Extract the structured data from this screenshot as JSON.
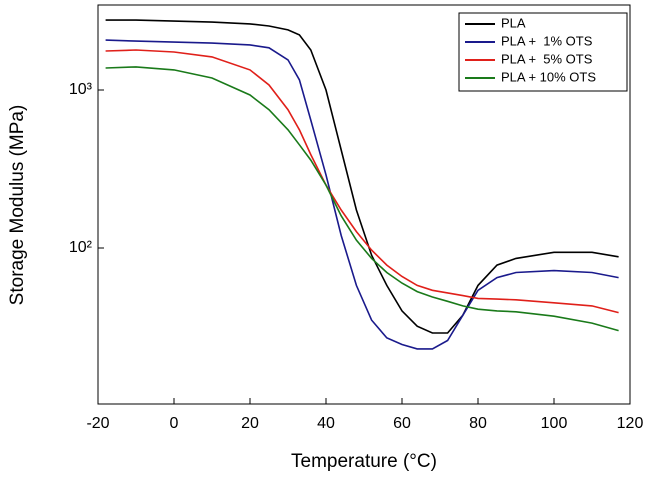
{
  "chart_data": {
    "type": "line",
    "x_label": "Temperature (°C)",
    "y_label": "Storage Modulus (MPa)",
    "x": [
      -18,
      -10,
      0,
      10,
      20,
      25,
      30,
      33,
      36,
      40,
      44,
      48,
      52,
      56,
      60,
      64,
      68,
      72,
      76,
      80,
      85,
      90,
      100,
      110,
      117
    ],
    "series": [
      {
        "name": "PLA",
        "color": "#000000",
        "values": [
          2770,
          2770,
          2730,
          2690,
          2620,
          2540,
          2400,
          2230,
          1790,
          1000,
          417,
          174,
          90,
          58,
          40,
          32,
          29,
          29,
          37.5,
          58,
          78,
          86,
          94,
          94,
          88
        ]
      },
      {
        "name": "PLA +  1% OTS",
        "color": "#1a1a8c",
        "values": [
          2070,
          2040,
          2010,
          1980,
          1930,
          1850,
          1550,
          1160,
          645,
          290,
          120,
          58,
          35,
          27,
          24.5,
          23,
          23,
          26,
          37.5,
          54,
          65,
          70,
          72,
          70,
          65
        ]
      },
      {
        "name": "PLA +  5% OTS",
        "color": "#e0201a",
        "values": [
          1765,
          1790,
          1740,
          1620,
          1340,
          1075,
          750,
          560,
          390,
          250,
          174,
          127,
          97,
          78,
          66,
          58,
          54,
          52,
          50,
          48,
          47.5,
          47,
          45,
          43,
          39
        ]
      },
      {
        "name": "PLA + 10% OTS",
        "color": "#1a7a1a",
        "values": [
          1378,
          1400,
          1340,
          1190,
          930,
          750,
          560,
          450,
          360,
          250,
          160,
          112,
          86,
          70,
          60,
          53,
          49,
          46,
          43,
          41,
          40,
          39.5,
          37,
          33.5,
          30
        ]
      }
    ],
    "xlim": [
      -20,
      120
    ],
    "xticks": [
      -20,
      0,
      20,
      40,
      60,
      80,
      100,
      120
    ],
    "ylim": [
      10.3,
      3450
    ],
    "yticks": [
      {
        "value": 100,
        "label": "10²"
      },
      {
        "value": 1000,
        "label": "10³"
      }
    ],
    "log_y": true,
    "legend": "upper-right"
  }
}
